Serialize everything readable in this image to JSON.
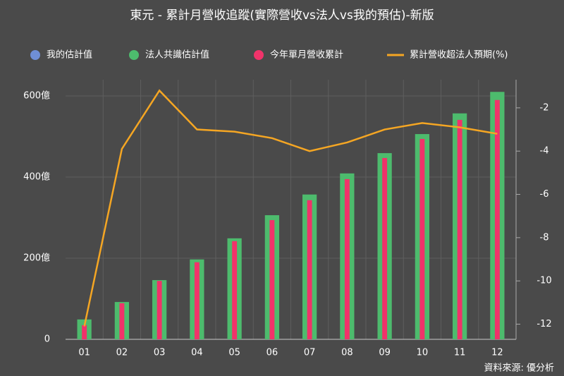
{
  "chart_data": {
    "type": "bar-line",
    "title": "東元 - 累計月營收追蹤(實際營收vs法人vs我的預估)-新版",
    "source": "資料來源: 優分析",
    "categories": [
      "01",
      "02",
      "03",
      "04",
      "05",
      "06",
      "07",
      "08",
      "09",
      "10",
      "11",
      "12"
    ],
    "series": [
      {
        "name": "我的估計值",
        "color": "#6f8fd6",
        "kind": "bar",
        "values": [
          null,
          null,
          null,
          null,
          null,
          null,
          null,
          null,
          null,
          null,
          null,
          null
        ]
      },
      {
        "name": "法人共識估計值",
        "color": "#4dbb6d",
        "kind": "bar",
        "values": [
          49,
          92,
          146,
          197,
          249,
          306,
          357,
          409,
          459,
          506,
          557,
          610
        ]
      },
      {
        "name": "今年單月營收累計",
        "color": "#f0336a",
        "kind": "bar",
        "values": [
          35,
          89,
          144,
          190,
          242,
          294,
          343,
          395,
          447,
          494,
          541,
          590
        ]
      },
      {
        "name": "累計營收超法人預期(%)",
        "color": "#f5a623",
        "kind": "line",
        "axis": "y2",
        "values": [
          -12.1,
          -3.9,
          -1.2,
          -3.0,
          -3.1,
          -3.4,
          -4.0,
          -3.6,
          -3.0,
          -2.7,
          -2.9,
          -3.2
        ]
      }
    ],
    "ylim": [
      0,
      640
    ],
    "yticks": [
      0,
      {
        "value": 200,
        "label": "200億"
      },
      {
        "value": 400,
        "label": "400億"
      },
      {
        "value": 600,
        "label": "600億"
      }
    ],
    "y2lim": [
      -12.7,
      -0.7
    ],
    "y2ticks": [
      -2,
      -4,
      -6,
      -8,
      -10,
      -12
    ],
    "grid": true
  }
}
